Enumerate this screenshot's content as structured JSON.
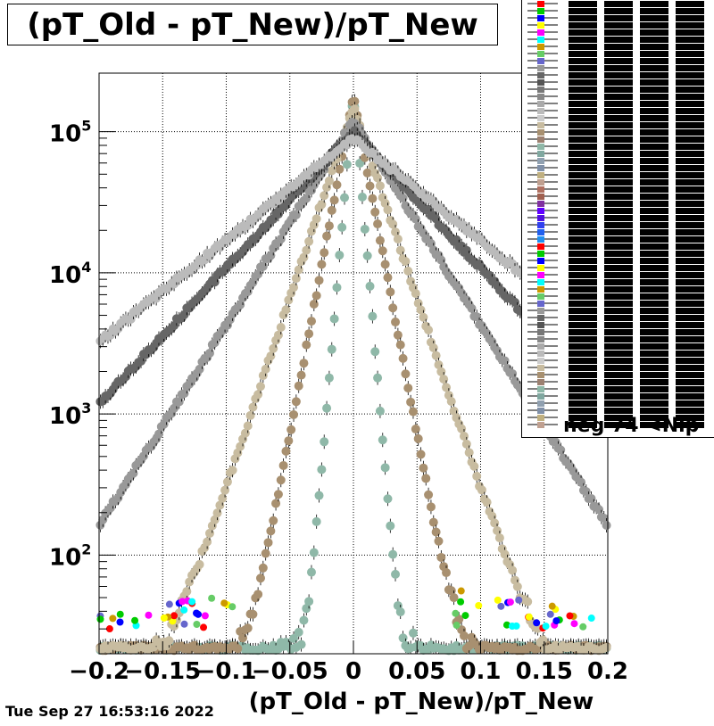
{
  "title": "(pT_Old - pT_New)/pT_New",
  "timestamp": "Tue Sep 27 16:53:16 2022",
  "legend": {
    "visible_entry": "neg 74 <Nip",
    "colors": [
      "#ff0000",
      "#00cc00",
      "#0000ff",
      "#ffff00",
      "#ff00ff",
      "#00ffff",
      "#cc9900",
      "#66cc66",
      "#6666cc",
      "#999999",
      "#666666",
      "#555555",
      "#777777",
      "#888888",
      "#aaaaaa",
      "#bbbbbb",
      "#cccccc",
      "#c8bca0",
      "#a89070",
      "#9c8070",
      "#8fb8a8",
      "#80a8a0",
      "#90a0b0",
      "#8090a8",
      "#c0b080",
      "#c0a090",
      "#b07060",
      "#a06050",
      "#8030a0",
      "#6000ff",
      "#5010e0",
      "#3040f0",
      "#2060f0",
      "#2090f0"
    ]
  },
  "chart_data": {
    "type": "scatter",
    "title": "(pT_Old - pT_New)/pT_New",
    "xlabel": "(pT_Old - pT_New)/pT_New",
    "ylabel": "",
    "xlim": [
      -0.2,
      0.2
    ],
    "ylim": [
      20,
      260000
    ],
    "yscale": "log",
    "grid": true,
    "x_ticks": [
      "−0.2",
      "−0.15",
      "−0.1",
      "−0.05",
      "0",
      "0.05",
      "0.1",
      "0.15",
      "0.2"
    ],
    "x_tick_values": [
      -0.2,
      -0.15,
      -0.1,
      -0.05,
      0,
      0.05,
      0.1,
      0.15,
      0.2
    ],
    "y_ticks": [
      {
        "value": 100,
        "base": "10",
        "exp": "2"
      },
      {
        "value": 1000,
        "base": "10",
        "exp": "3"
      },
      {
        "value": 10000,
        "base": "10",
        "exp": "4"
      },
      {
        "value": 100000,
        "base": "10",
        "exp": "5"
      }
    ],
    "series": [
      {
        "color": "#8fb8a8",
        "peak": 200000,
        "width": 0.004
      },
      {
        "color": "#a89070",
        "peak": 180000,
        "width": 0.009
      },
      {
        "color": "#c8bca0",
        "peak": 150000,
        "width": 0.016
      },
      {
        "color": "#999999",
        "peak": 120000,
        "width": 0.03
      },
      {
        "color": "#666666",
        "peak": 100000,
        "width": 0.045
      },
      {
        "color": "#bbbbbb",
        "peak": 90000,
        "width": 0.06
      }
    ]
  }
}
